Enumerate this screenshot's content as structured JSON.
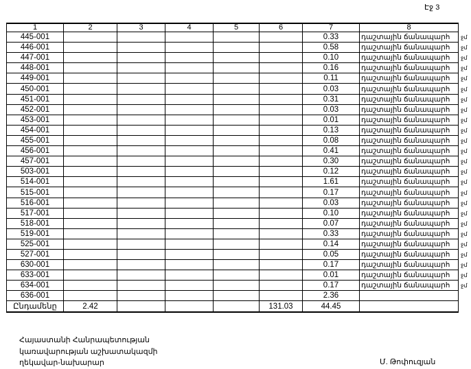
{
  "page_label": "Էջ 3",
  "table": {
    "headers": [
      "1",
      "2",
      "3",
      "4",
      "5",
      "6",
      "7",
      "8"
    ],
    "rows": [
      {
        "code": "445-001",
        "c7": "0.33",
        "c8": "դաշտային ճանապարհ",
        "note": "ջմ"
      },
      {
        "code": "446-001",
        "c7": "0.58",
        "c8": "դաշտային ճանապարհ",
        "note": "ջմ"
      },
      {
        "code": "447-001",
        "c7": "0.10",
        "c8": "դաշտային ճանապարհ",
        "note": "ջմ"
      },
      {
        "code": "448-001",
        "c7": "0.16",
        "c8": "դաշտային ճանապարհ",
        "note": "ջմ"
      },
      {
        "code": "449-001",
        "c7": "0.11",
        "c8": "դաշտային ճանապարհ",
        "note": "ջմ"
      },
      {
        "code": "450-001",
        "c7": "0.03",
        "c8": "դաշտային ճանապարհ",
        "note": "ջմ"
      },
      {
        "code": "451-001",
        "c7": "0.31",
        "c8": "դաշտային ճանապարհ",
        "note": "ջմ"
      },
      {
        "code": "452-001",
        "c7": "0.03",
        "c8": "դաշտային ճանապարհ",
        "note": "ջմ"
      },
      {
        "code": "453-001",
        "c7": "0.01",
        "c8": "դաշտային ճանապարհ",
        "note": "ջմ"
      },
      {
        "code": "454-001",
        "c7": "0.13",
        "c8": "դաշտային ճանապարհ",
        "note": "ջմ"
      },
      {
        "code": "455-001",
        "c7": "0.08",
        "c8": "դաշտային ճանապարհ",
        "note": "ջմ"
      },
      {
        "code": "456-001",
        "c7": "0.41",
        "c8": "դաշտային ճանապարհ",
        "note": "ջմ"
      },
      {
        "code": "457-001",
        "c7": "0.30",
        "c8": "դաշտային ճանապարհ",
        "note": "ջմ"
      },
      {
        "code": "503-001",
        "c7": "0.12",
        "c8": "դաշտային ճանապարհ",
        "note": "ջմ"
      },
      {
        "code": "514-001",
        "c7": "1.61",
        "c8": "դաշտային ճանապարհ",
        "note": "ջմ"
      },
      {
        "code": "515-001",
        "c7": "0.17",
        "c8": "դաշտային ճանապարհ",
        "note": "ջմ"
      },
      {
        "code": "516-001",
        "c7": "0.03",
        "c8": "դաշտային ճանապարհ",
        "note": "ջմ"
      },
      {
        "code": "517-001",
        "c7": "0.10",
        "c8": "դաշտային ճանապարհ",
        "note": "ջմ"
      },
      {
        "code": "518-001",
        "c7": "0.07",
        "c8": "դաշտային ճանապարհ",
        "note": "ջմ"
      },
      {
        "code": "519-001",
        "c7": "0.33",
        "c8": "դաշտային ճանապարհ",
        "note": "ջմ"
      },
      {
        "code": "525-001",
        "c7": "0.14",
        "c8": "դաշտային ճանապարհ",
        "note": "ջմ"
      },
      {
        "code": "527-001",
        "c7": "0.05",
        "c8": "դաշտային ճանապարհ",
        "note": "ջմ"
      },
      {
        "code": "630-001",
        "c7": "0.17",
        "c8": "դաշտային ճանապարհ",
        "note": "ջմ"
      },
      {
        "code": "633-001",
        "c7": "0.01",
        "c8": "դաշտային ճանապարհ",
        "note": "ջմ"
      },
      {
        "code": "634-001",
        "c7": "0.17",
        "c8": "դաշտային ճանապարհ",
        "note": "ջմ"
      },
      {
        "code": "636-001",
        "c7": "2.36",
        "c8": "",
        "note": ""
      }
    ],
    "total": {
      "label": "Ընդամենը",
      "c2": "2.42",
      "c3": "",
      "c4": "",
      "c5": "",
      "c6": "131.03",
      "c7": "44.45",
      "c8": ""
    }
  },
  "footer": {
    "lines": [
      "Հայաստանի Հանրապետության",
      "կառավարության աշխատակազմի",
      "ղեկավար-նախարար"
    ],
    "signature": "Մ. Թոփուզյան"
  }
}
